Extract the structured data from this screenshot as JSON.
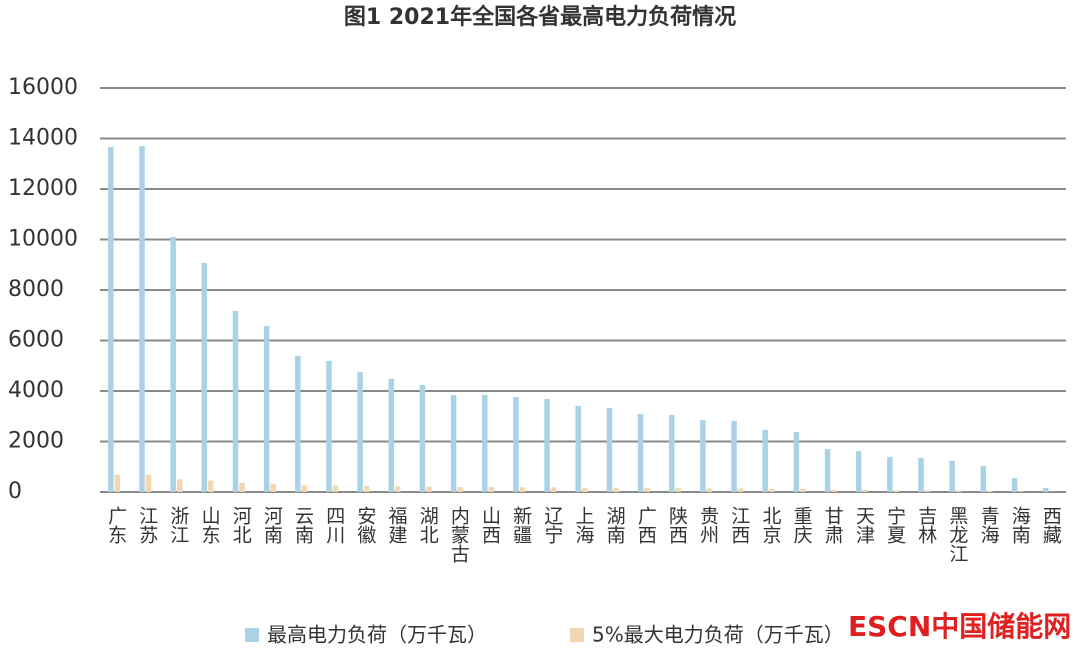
{
  "chart_data": {
    "type": "bar",
    "title": "图1 2021年全国各省最高电力负荷情况",
    "categories": [
      "广东",
      "江苏",
      "浙江",
      "山东",
      "河北",
      "河南",
      "云南",
      "四川",
      "安徽",
      "福建",
      "湖北",
      "内蒙古",
      "山西",
      "新疆",
      "辽宁",
      "上海",
      "湖南",
      "广西",
      "陕西",
      "贵州",
      "江西",
      "北京",
      "重庆",
      "甘肃",
      "天津",
      "宁夏",
      "吉林",
      "黑龙江",
      "青海",
      "海南",
      "西藏"
    ],
    "series": [
      {
        "name": "最高电力负荷（万千瓦）",
        "color": "#a9d3e5",
        "values": [
          13660,
          13700,
          10100,
          9070,
          7170,
          6570,
          5390,
          5190,
          4750,
          4480,
          4240,
          3840,
          3840,
          3760,
          3680,
          3410,
          3330,
          3090,
          3050,
          2850,
          2810,
          2460,
          2380,
          1700,
          1620,
          1390,
          1350,
          1230,
          1030,
          550,
          160
        ]
      },
      {
        "name": "5%最大电力负荷（万千瓦）",
        "color": "#f3d7b3",
        "values": [
          683,
          685,
          505,
          454,
          359,
          329,
          270,
          260,
          238,
          224,
          212,
          192,
          192,
          188,
          184,
          171,
          167,
          155,
          153,
          143,
          141,
          123,
          119,
          85,
          81,
          70,
          68,
          62,
          52,
          28,
          8
        ]
      }
    ],
    "ylim": [
      0,
      16000
    ],
    "yticks": [
      0,
      2000,
      4000,
      6000,
      8000,
      10000,
      12000,
      14000,
      16000
    ],
    "grid": true,
    "watermark": "ESCN中国储能网"
  }
}
